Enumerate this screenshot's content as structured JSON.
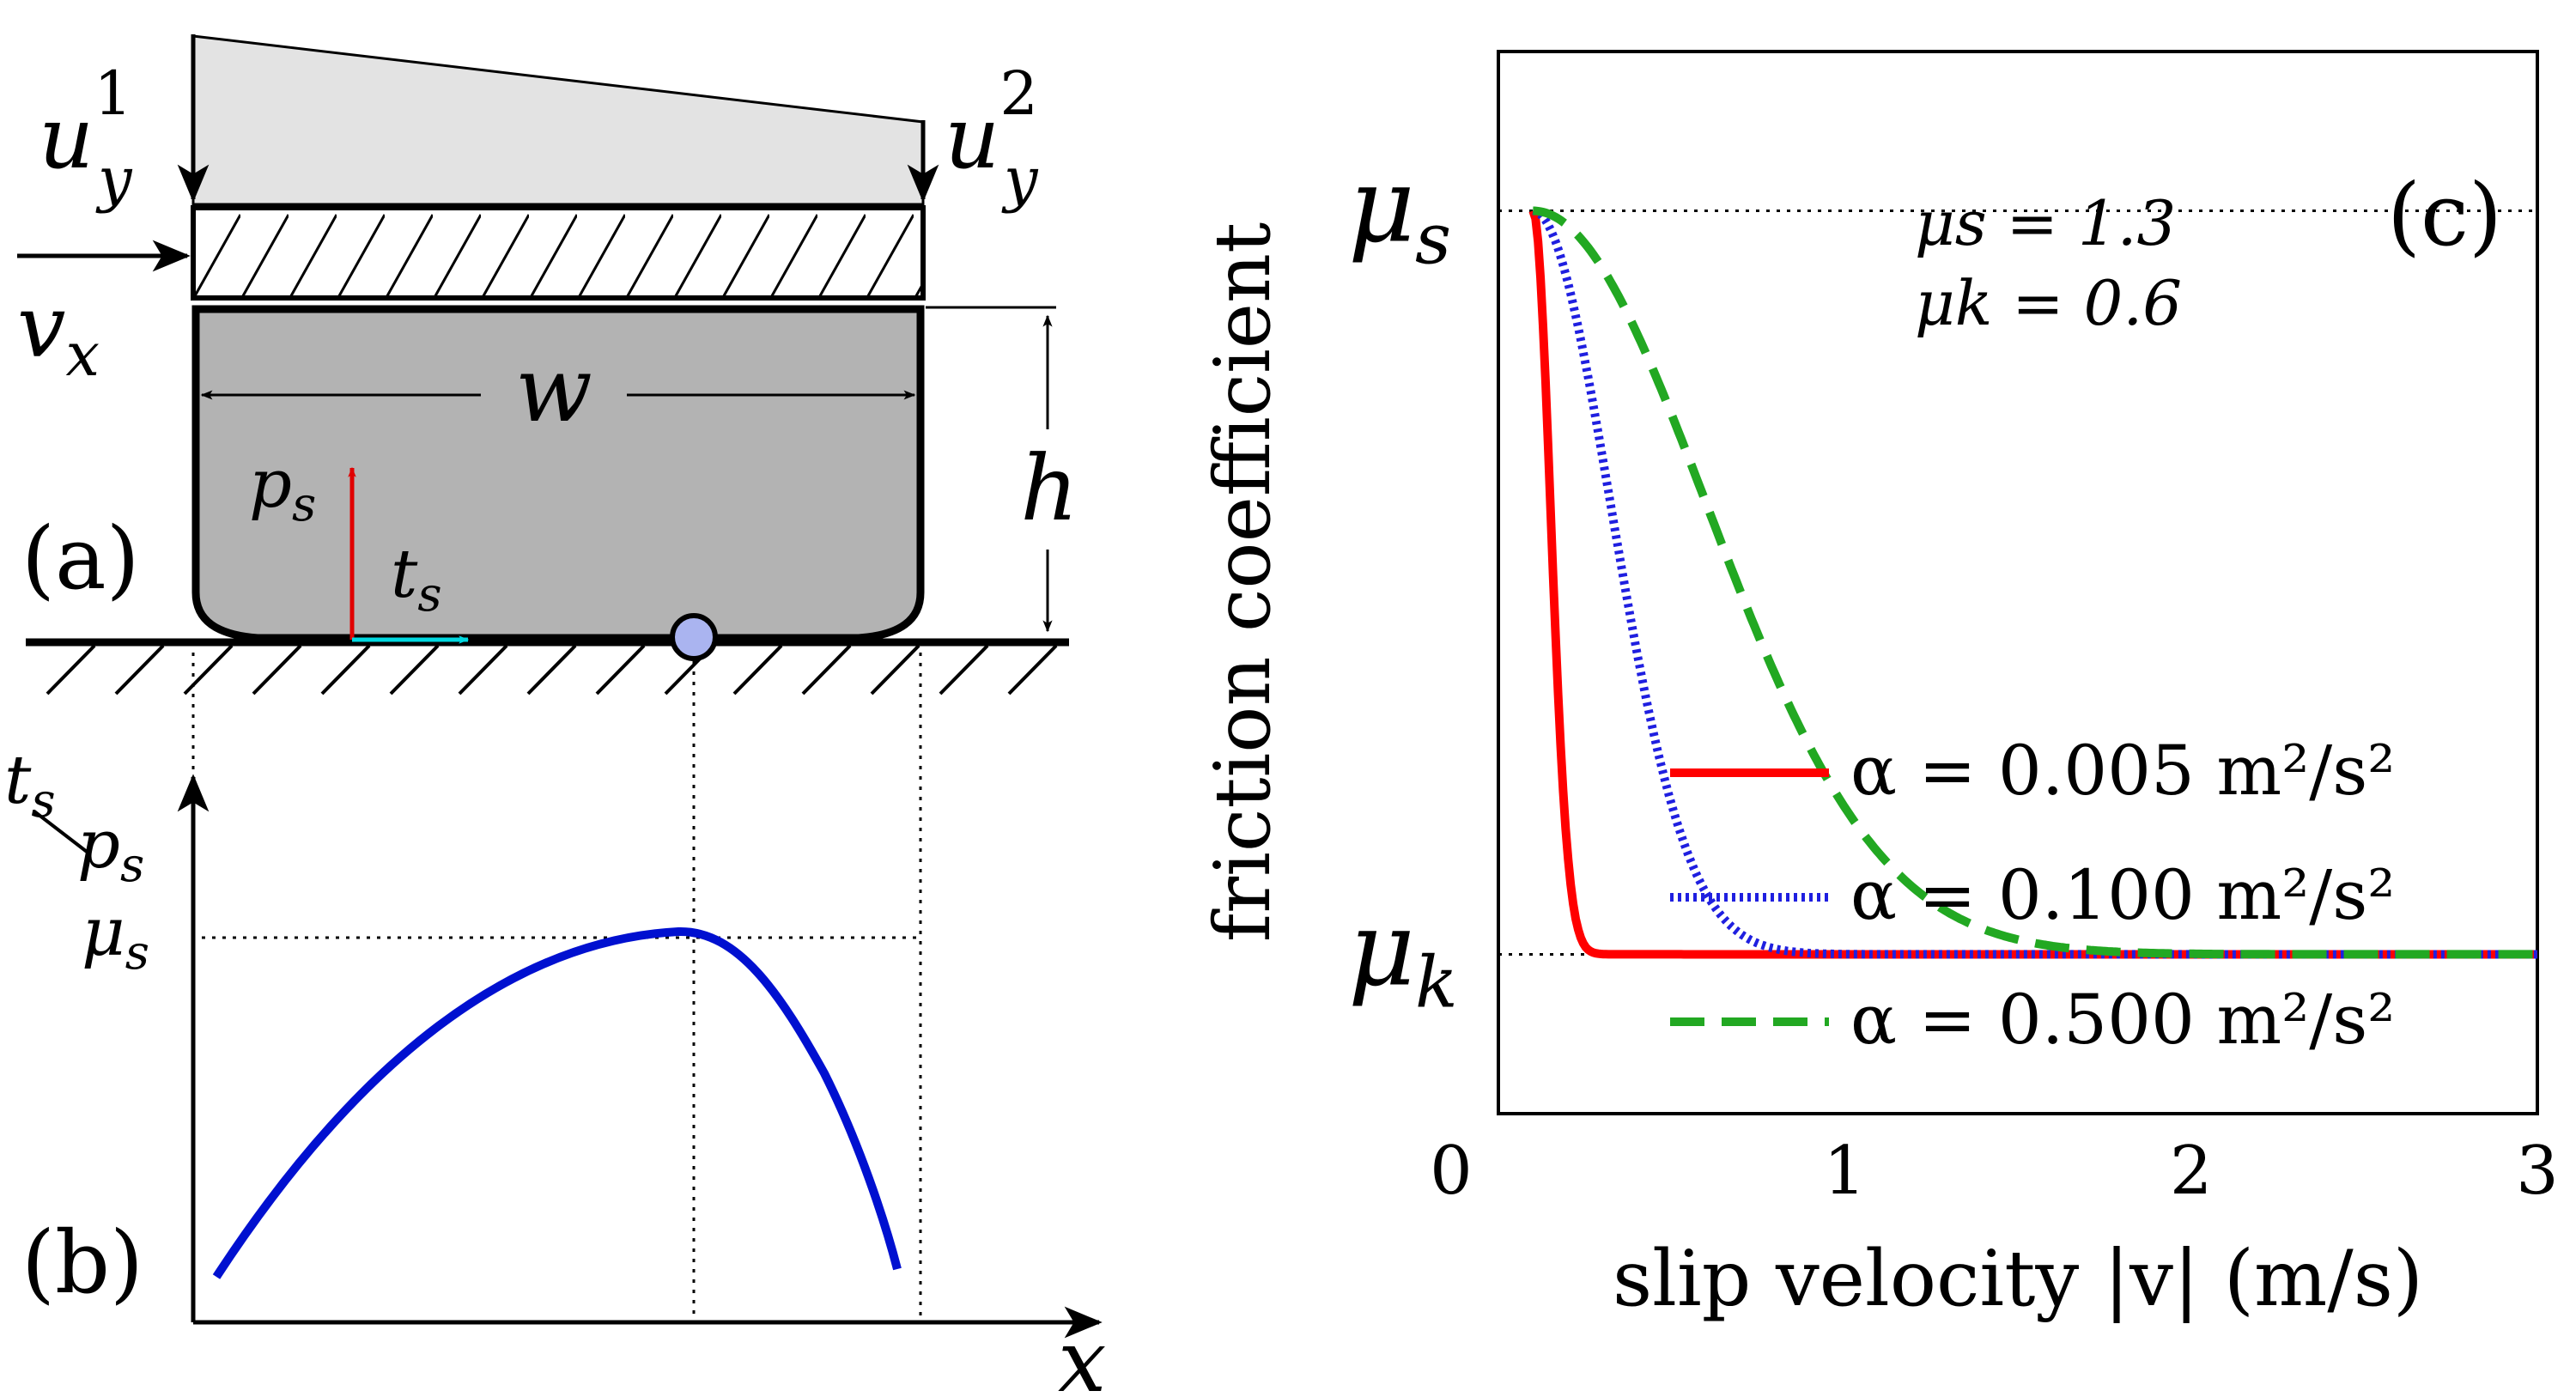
{
  "panel_a": {
    "label": "(a)",
    "uy1": {
      "base": "u",
      "sub": "y",
      "sup": "1"
    },
    "uy2": {
      "base": "u",
      "sub": "y",
      "sup": "2"
    },
    "vx": {
      "base": "v",
      "sub": "x"
    },
    "w": "w",
    "h": "h",
    "ps": {
      "base": "p",
      "sub": "s"
    },
    "ts": {
      "base": "t",
      "sub": "s"
    }
  },
  "panel_b": {
    "label": "(b)",
    "ratio_num": {
      "base": "t",
      "sub": "s"
    },
    "ratio_den": {
      "base": "p",
      "sub": "s"
    },
    "mu_s": {
      "base": "μ",
      "sub": "s"
    },
    "x": "x"
  },
  "chart_data": {
    "type": "line",
    "panel_label": "(c)",
    "title": "",
    "xlabel": "slip velocity |v| (m/s)",
    "ylabel": "friction coefficient",
    "xlim": [
      0,
      3
    ],
    "ylim": [
      0.45,
      1.45
    ],
    "x_ticks": [
      "0",
      "1",
      "2",
      "3"
    ],
    "mu_s": 1.3,
    "mu_k": 0.6,
    "y_marker_labels": {
      "mu_s": "μs",
      "mu_k": "μk"
    },
    "param_text": [
      "μs = 1.3",
      "μk = 0.6"
    ],
    "model": "mu = mu_k + (mu_s - mu_k) * exp(-|v|^2 / alpha) (x offset 0.1)",
    "series": [
      {
        "name": "α = 0.005 m²/s²",
        "alpha": 0.005,
        "color": "#ff0000",
        "style": "solid"
      },
      {
        "name": "α = 0.100 m²/s²",
        "alpha": 0.1,
        "color": "#1f1fe0",
        "style": "dotted"
      },
      {
        "name": "α = 0.500 m²/s²",
        "alpha": 0.5,
        "color": "#22a822",
        "style": "dashed"
      }
    ],
    "legend_position": "lower-right"
  },
  "colors": {
    "block_fill": "#b3b3b3",
    "top_load_fill": "#e3e3e3",
    "ps_arrow": "#e00000",
    "ts_arrow": "#00d8e0",
    "contact_point": "#aab4f0",
    "traction_curve": "#0010d0"
  }
}
